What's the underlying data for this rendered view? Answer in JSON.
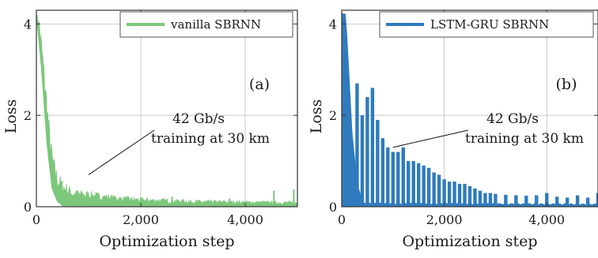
{
  "colors": {
    "vanilla": "#7cc77b",
    "lstm": "#2f7bbd",
    "grid": "#bfbfbf",
    "axis": "#333333"
  },
  "chart_data": [
    {
      "type": "area",
      "panel_label": "(a)",
      "legend": "vanilla SBRNN",
      "legend_placement": "top-right",
      "xlabel": "Optimization step",
      "ylabel": "Loss",
      "xlim": [
        0,
        5000
      ],
      "ylim": [
        0,
        4.3
      ],
      "xticks": [
        0,
        2000,
        4000
      ],
      "xtick_labels": [
        "0",
        "2,000",
        "4,000"
      ],
      "yticks": [
        0,
        2,
        4
      ],
      "ytick_labels": [
        "0",
        "2",
        "4"
      ],
      "grid": true,
      "annotation": {
        "line1": "42 Gb/s",
        "line2": "training at 30 km",
        "arrow_to": [
          1000,
          0.7
        ]
      },
      "series": [
        {
          "name": "vanilla SBRNN",
          "envelope_max": [
            [
              0,
              4.2
            ],
            [
              50,
              4.15
            ],
            [
              100,
              3.7
            ],
            [
              150,
              3.1
            ],
            [
              200,
              2.5
            ],
            [
              250,
              1.8
            ],
            [
              300,
              1.3
            ],
            [
              350,
              1.0
            ],
            [
              400,
              0.8
            ],
            [
              500,
              0.6
            ],
            [
              700,
              0.4
            ],
            [
              1000,
              0.35
            ],
            [
              1500,
              0.25
            ],
            [
              2000,
              0.2
            ],
            [
              3000,
              0.15
            ],
            [
              4000,
              0.13
            ],
            [
              5000,
              0.12
            ]
          ],
          "envelope_min": [
            [
              0,
              4.2
            ],
            [
              100,
              3.0
            ],
            [
              200,
              1.4
            ],
            [
              300,
              0.4
            ],
            [
              400,
              0.12
            ],
            [
              500,
              0.02
            ],
            [
              5000,
              0.0
            ]
          ]
        }
      ]
    },
    {
      "type": "area",
      "panel_label": "(b)",
      "legend": "LSTM-GRU SBRNN",
      "legend_placement": "top-right",
      "xlabel": "Optimization step",
      "ylabel": "Loss",
      "xlim": [
        0,
        5000
      ],
      "ylim": [
        0,
        4.3
      ],
      "xticks": [
        0,
        2000,
        4000
      ],
      "xtick_labels": [
        "0",
        "2,000",
        "4,000"
      ],
      "yticks": [
        0,
        2,
        4
      ],
      "ytick_labels": [
        "0",
        "2",
        "4"
      ],
      "grid": true,
      "annotation": {
        "line1": "42 Gb/s",
        "line2": "training at 30 km",
        "arrow_to": [
          1000,
          1.3
        ]
      },
      "series": [
        {
          "name": "LSTM-GRU SBRNN",
          "spike_period": 100,
          "spikes": [
            [
              300,
              2.7
            ],
            [
              400,
              2.0
            ],
            [
              500,
              2.4
            ],
            [
              600,
              2.6
            ],
            [
              700,
              1.9
            ],
            [
              800,
              1.5
            ],
            [
              900,
              1.3
            ],
            [
              1000,
              1.2
            ],
            [
              1100,
              1.2
            ],
            [
              1200,
              1.3
            ],
            [
              1300,
              1.0
            ],
            [
              1400,
              1.0
            ],
            [
              1500,
              0.95
            ],
            [
              1600,
              0.9
            ],
            [
              1700,
              0.85
            ],
            [
              1800,
              0.75
            ],
            [
              1900,
              0.7
            ],
            [
              2000,
              0.6
            ],
            [
              2100,
              0.55
            ],
            [
              2200,
              0.55
            ],
            [
              2300,
              0.5
            ],
            [
              2400,
              0.5
            ],
            [
              2500,
              0.45
            ],
            [
              2600,
              0.4
            ],
            [
              2700,
              0.35
            ],
            [
              2800,
              0.3
            ],
            [
              2900,
              0.3
            ],
            [
              3000,
              0.28
            ],
            [
              3200,
              0.26
            ],
            [
              3400,
              0.25
            ],
            [
              3600,
              0.24
            ],
            [
              3800,
              0.25
            ],
            [
              4000,
              0.3
            ],
            [
              4200,
              0.22
            ],
            [
              4400,
              0.2
            ],
            [
              4600,
              0.25
            ],
            [
              4800,
              0.2
            ],
            [
              5000,
              0.3
            ]
          ],
          "envelope_min": [
            [
              0,
              4.2
            ],
            [
              100,
              3.0
            ],
            [
              200,
              1.3
            ],
            [
              300,
              0.4
            ],
            [
              400,
              0.1
            ],
            [
              500,
              0.02
            ],
            [
              5000,
              0.0
            ]
          ]
        }
      ]
    }
  ]
}
